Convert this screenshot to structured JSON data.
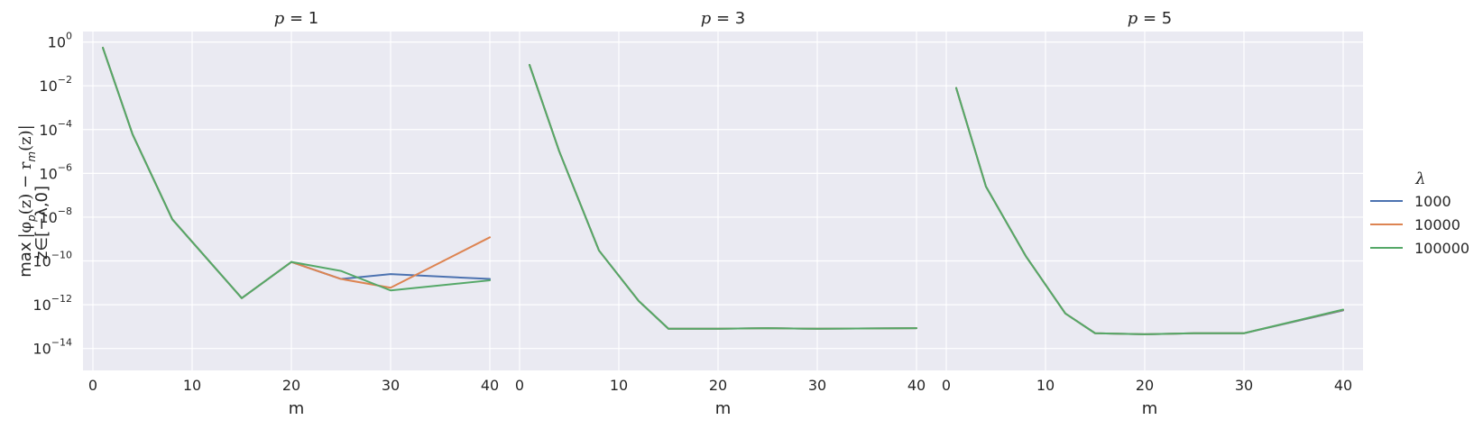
{
  "chart_data": {
    "type": "line",
    "xlabel": "m",
    "ylabel": "max_{z∈[−λ,0]} |φ_p(z) − r_m(z)|",
    "ylabel_parts": {
      "op": "max",
      "sub": "z∈[−λ,0]",
      "expr": "|φ",
      "expr_sub": "p",
      "expr_mid": "(z) − r",
      "expr_sub2": "m",
      "expr_end": "(z)|"
    },
    "yscale": "log",
    "ylim": [
      1e-15,
      3
    ],
    "xlim": [
      -1,
      42
    ],
    "xticks": [
      0,
      10,
      20,
      30,
      40
    ],
    "yticks": [
      {
        "base": "10",
        "exp": "0"
      },
      {
        "base": "10",
        "exp": "−2"
      },
      {
        "base": "10",
        "exp": "−4"
      },
      {
        "base": "10",
        "exp": "−6"
      },
      {
        "base": "10",
        "exp": "−8"
      },
      {
        "base": "10",
        "exp": "−10"
      },
      {
        "base": "10",
        "exp": "−12"
      },
      {
        "base": "10",
        "exp": "−14"
      }
    ],
    "grid": true,
    "legend": {
      "title": "λ",
      "placement": "right",
      "entries": [
        {
          "label": "1000",
          "color": "#4c72b0"
        },
        {
          "label": "10000",
          "color": "#dd8452"
        },
        {
          "label": "100000",
          "color": "#55a868"
        }
      ]
    },
    "panels": [
      {
        "title_var": "p",
        "title_rest": " = 1",
        "series": [
          {
            "name": "1000",
            "x": [
              1,
              4,
              8,
              12,
              15,
              20,
              25,
              30,
              40
            ],
            "y": [
              0.55,
              6e-05,
              8e-09,
              7e-11,
              2e-12,
              9e-11,
              1.5e-11,
              2.5e-11,
              1.5e-11
            ]
          },
          {
            "name": "10000",
            "x": [
              1,
              4,
              8,
              12,
              15,
              20,
              25,
              30,
              40
            ],
            "y": [
              0.55,
              6e-05,
              8e-09,
              7e-11,
              2e-12,
              9e-11,
              1.5e-11,
              6e-12,
              1.2e-09
            ]
          },
          {
            "name": "100000",
            "x": [
              1,
              4,
              8,
              12,
              15,
              20,
              25,
              30,
              40
            ],
            "y": [
              0.55,
              6e-05,
              8e-09,
              7e-11,
              2e-12,
              9e-11,
              3.5e-11,
              4.5e-12,
              1.3e-11
            ]
          }
        ]
      },
      {
        "title_var": "p",
        "title_rest": " = 3",
        "series": [
          {
            "name": "1000",
            "x": [
              1,
              4,
              8,
              12,
              15,
              20,
              25,
              30,
              40
            ],
            "y": [
              0.09,
              1e-05,
              3e-10,
              1.5e-12,
              8e-14,
              8e-14,
              8.5e-14,
              8e-14,
              8.5e-14
            ]
          },
          {
            "name": "10000",
            "x": [
              1,
              4,
              8,
              12,
              15,
              20,
              25,
              30,
              40
            ],
            "y": [
              0.09,
              1e-05,
              3e-10,
              1.5e-12,
              8e-14,
              8e-14,
              8.5e-14,
              8e-14,
              8.5e-14
            ]
          },
          {
            "name": "100000",
            "x": [
              1,
              4,
              8,
              12,
              15,
              20,
              25,
              30,
              40
            ],
            "y": [
              0.09,
              1e-05,
              3e-10,
              1.5e-12,
              8e-14,
              8e-14,
              8.5e-14,
              8e-14,
              8.5e-14
            ]
          }
        ]
      },
      {
        "title_var": "p",
        "title_rest": " = 5",
        "series": [
          {
            "name": "1000",
            "x": [
              1,
              4,
              8,
              12,
              15,
              20,
              25,
              30,
              40
            ],
            "y": [
              0.008,
              2.5e-07,
              1.7e-10,
              4e-13,
              5e-14,
              4.5e-14,
              5e-14,
              5e-14,
              5.5e-13
            ]
          },
          {
            "name": "10000",
            "x": [
              1,
              4,
              8,
              12,
              15,
              20,
              25,
              30,
              40
            ],
            "y": [
              0.008,
              2.5e-07,
              1.7e-10,
              4e-13,
              5e-14,
              4.5e-14,
              5e-14,
              5e-14,
              5.8e-13
            ]
          },
          {
            "name": "100000",
            "x": [
              1,
              4,
              8,
              12,
              15,
              20,
              25,
              30,
              40
            ],
            "y": [
              0.008,
              2.5e-07,
              1.7e-10,
              4e-13,
              5e-14,
              4.5e-14,
              5e-14,
              5e-14,
              6e-13
            ]
          }
        ]
      }
    ]
  }
}
